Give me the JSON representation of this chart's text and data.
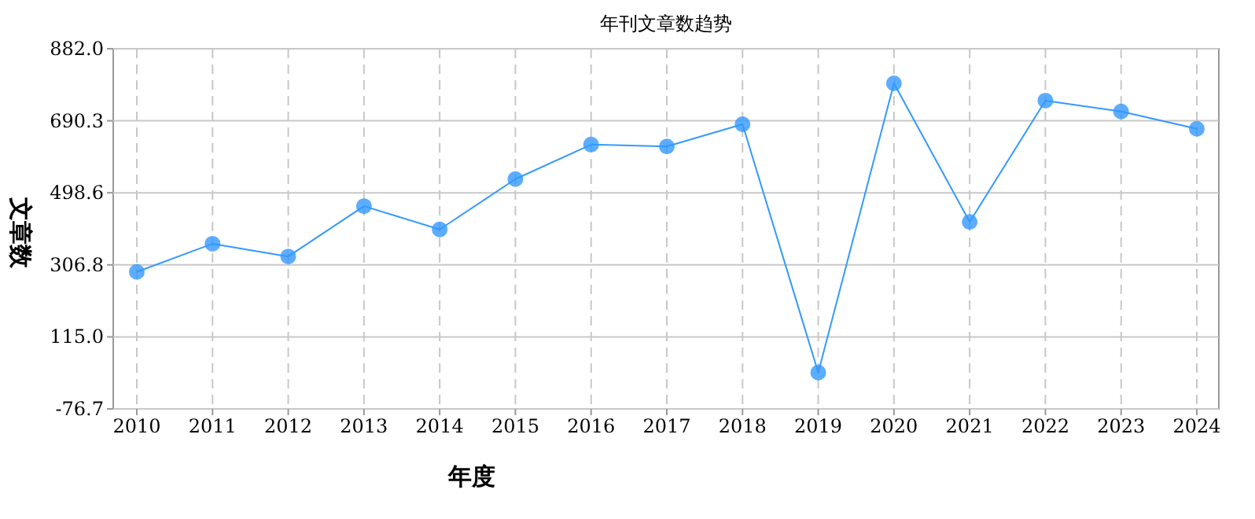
{
  "chart_data": {
    "type": "line",
    "title": "年刊文章数趋势",
    "xlabel": "年度",
    "ylabel": "文章数",
    "categories": [
      "2010",
      "2011",
      "2012",
      "2013",
      "2014",
      "2015",
      "2016",
      "2017",
      "2018",
      "2019",
      "2020",
      "2021",
      "2022",
      "2023",
      "2024"
    ],
    "series": [
      {
        "color": "#3399ff",
        "values": [
          288,
          363,
          329,
          463,
          401,
          535,
          627,
          622,
          681,
          20,
          790,
          421,
          744,
          715,
          669
        ]
      }
    ],
    "ylim": [
      -76.7,
      882.0
    ],
    "yticks": [
      {
        "value": -76.7,
        "label": "-76.7"
      },
      {
        "value": 115.0,
        "label": "115.0"
      },
      {
        "value": 306.8,
        "label": "306.8"
      },
      {
        "value": 498.6,
        "label": "498.6"
      },
      {
        "value": 690.3,
        "label": "690.3"
      },
      {
        "value": 882.0,
        "label": "882.0"
      }
    ],
    "grid": true,
    "marker": "circle",
    "line_style": "solid"
  }
}
